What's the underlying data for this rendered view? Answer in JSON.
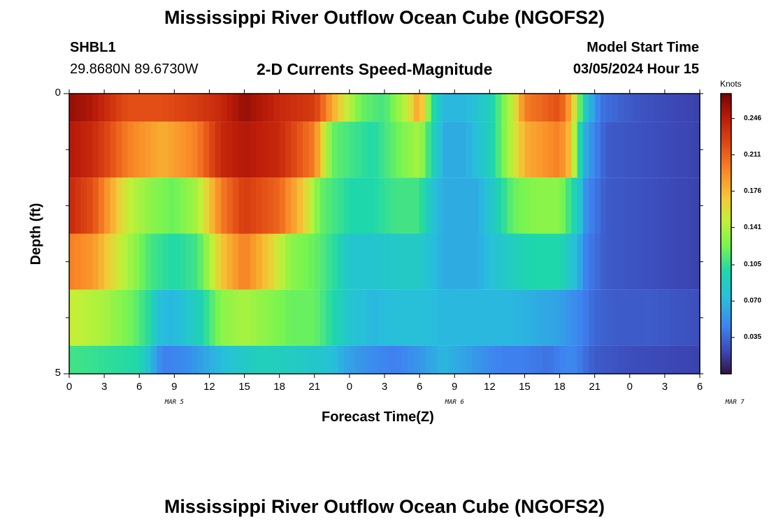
{
  "chart_data": {
    "type": "heatmap",
    "title": "Mississippi River Outflow Ocean Cube (NGOFS2)",
    "subtitle": "2-D Currents Speed-Magnitude",
    "station": "SHBL1",
    "coordinates": "29.8680N  89.6730W",
    "model_start_label": "Model Start Time",
    "model_start_value": "03/05/2024 Hour 15",
    "xlabel": "Forecast Time(Z)",
    "ylabel": "Depth (ft)",
    "colorbar_label": "Knots",
    "x_tick_labels": [
      "0",
      "3",
      "6",
      "9",
      "12",
      "15",
      "18",
      "21",
      "0",
      "3",
      "6",
      "9",
      "12",
      "15",
      "18",
      "21",
      "0",
      "3",
      "6"
    ],
    "x_date_labels": [
      {
        "label": "MAR 5",
        "hour": 9
      },
      {
        "label": "MAR 6",
        "hour": 33
      },
      {
        "label": "MAR 7",
        "hour": 57
      }
    ],
    "xlim": [
      0,
      54
    ],
    "y_tick_labels": [
      "0",
      "5"
    ],
    "ylim": [
      0,
      5
    ],
    "colorbar_ticks": [
      "0.246",
      "0.211",
      "0.176",
      "0.141",
      "0.105",
      "0.070",
      "0.035"
    ],
    "colorbar_range": [
      0.0,
      0.27
    ],
    "colormap": "turbo",
    "rows": [
      {
        "depth_top": 0.0,
        "depth_bottom": 0.5,
        "knots": [
          [
            0,
            0.26
          ],
          [
            2,
            0.25
          ],
          [
            5,
            0.22
          ],
          [
            8,
            0.22
          ],
          [
            11,
            0.23
          ],
          [
            13,
            0.24
          ],
          [
            15,
            0.26
          ],
          [
            18,
            0.24
          ],
          [
            21,
            0.23
          ],
          [
            23,
            0.17
          ],
          [
            25,
            0.12
          ],
          [
            27,
            0.11
          ],
          [
            29,
            0.15
          ],
          [
            30,
            0.19
          ],
          [
            31,
            0.11
          ],
          [
            32,
            0.07
          ],
          [
            34,
            0.07
          ],
          [
            36,
            0.09
          ],
          [
            37,
            0.12
          ],
          [
            38,
            0.15
          ],
          [
            39,
            0.2
          ],
          [
            42,
            0.22
          ],
          [
            43,
            0.18
          ],
          [
            43.7,
            0.12
          ],
          [
            44.3,
            0.08
          ],
          [
            45.5,
            0.04
          ],
          [
            48,
            0.03
          ],
          [
            50,
            0.025
          ],
          [
            53.8,
            0.02
          ],
          [
            54,
            0.0
          ]
        ]
      },
      {
        "depth_top": 0.5,
        "depth_bottom": 1.5,
        "knots": [
          [
            0,
            0.25
          ],
          [
            2,
            0.24
          ],
          [
            5,
            0.2
          ],
          [
            8,
            0.18
          ],
          [
            11,
            0.2
          ],
          [
            13,
            0.24
          ],
          [
            15,
            0.25
          ],
          [
            18,
            0.24
          ],
          [
            21,
            0.2
          ],
          [
            22.5,
            0.12
          ],
          [
            24,
            0.11
          ],
          [
            26,
            0.1
          ],
          [
            28,
            0.12
          ],
          [
            30,
            0.14
          ],
          [
            31,
            0.1
          ],
          [
            32,
            0.065
          ],
          [
            34,
            0.065
          ],
          [
            36,
            0.09
          ],
          [
            37,
            0.12
          ],
          [
            38,
            0.15
          ],
          [
            39,
            0.18
          ],
          [
            42,
            0.2
          ],
          [
            43,
            0.17
          ],
          [
            43.7,
            0.1
          ],
          [
            44.3,
            0.06
          ],
          [
            46,
            0.03
          ],
          [
            50,
            0.025
          ],
          [
            54,
            0.02
          ]
        ]
      },
      {
        "depth_top": 1.5,
        "depth_bottom": 2.5,
        "knots": [
          [
            0,
            0.24
          ],
          [
            2,
            0.22
          ],
          [
            5,
            0.15
          ],
          [
            7,
            0.13
          ],
          [
            9,
            0.12
          ],
          [
            11,
            0.14
          ],
          [
            13,
            0.2
          ],
          [
            15,
            0.23
          ],
          [
            18,
            0.21
          ],
          [
            20,
            0.17
          ],
          [
            21.5,
            0.12
          ],
          [
            24,
            0.1
          ],
          [
            26,
            0.1
          ],
          [
            28,
            0.11
          ],
          [
            30,
            0.11
          ],
          [
            31,
            0.08
          ],
          [
            32,
            0.065
          ],
          [
            35,
            0.065
          ],
          [
            36,
            0.08
          ],
          [
            38,
            0.12
          ],
          [
            40,
            0.13
          ],
          [
            42,
            0.13
          ],
          [
            43.5,
            0.09
          ],
          [
            44.3,
            0.05
          ],
          [
            46,
            0.03
          ],
          [
            50,
            0.025
          ],
          [
            54,
            0.02
          ]
        ]
      },
      {
        "depth_top": 2.5,
        "depth_bottom": 3.5,
        "knots": [
          [
            0,
            0.2
          ],
          [
            2,
            0.19
          ],
          [
            5,
            0.14
          ],
          [
            7,
            0.11
          ],
          [
            9,
            0.1
          ],
          [
            11,
            0.11
          ],
          [
            13,
            0.17
          ],
          [
            15,
            0.2
          ],
          [
            17,
            0.17
          ],
          [
            19,
            0.13
          ],
          [
            21,
            0.12
          ],
          [
            23,
            0.1
          ],
          [
            24,
            0.08
          ],
          [
            26,
            0.08
          ],
          [
            28,
            0.085
          ],
          [
            30,
            0.085
          ],
          [
            32,
            0.065
          ],
          [
            35,
            0.065
          ],
          [
            36,
            0.075
          ],
          [
            38,
            0.09
          ],
          [
            40,
            0.1
          ],
          [
            42,
            0.1
          ],
          [
            43.5,
            0.07
          ],
          [
            44.3,
            0.045
          ],
          [
            46,
            0.03
          ],
          [
            50,
            0.025
          ],
          [
            54,
            0.02
          ]
        ]
      },
      {
        "depth_top": 3.5,
        "depth_bottom": 4.5,
        "knots": [
          [
            0,
            0.15
          ],
          [
            3,
            0.14
          ],
          [
            5.5,
            0.12
          ],
          [
            7,
            0.1
          ],
          [
            7.5,
            0.075
          ],
          [
            9,
            0.07
          ],
          [
            11,
            0.09
          ],
          [
            13,
            0.13
          ],
          [
            15,
            0.14
          ],
          [
            17,
            0.13
          ],
          [
            19,
            0.12
          ],
          [
            21,
            0.12
          ],
          [
            23,
            0.095
          ],
          [
            24,
            0.08
          ],
          [
            26,
            0.07
          ],
          [
            28,
            0.075
          ],
          [
            30,
            0.075
          ],
          [
            32,
            0.07
          ],
          [
            35,
            0.07
          ],
          [
            38,
            0.07
          ],
          [
            40,
            0.065
          ],
          [
            42,
            0.06
          ],
          [
            44,
            0.045
          ],
          [
            45,
            0.035
          ],
          [
            47,
            0.03
          ],
          [
            50,
            0.03
          ],
          [
            54,
            0.025
          ]
        ]
      },
      {
        "depth_top": 4.5,
        "depth_bottom": 5.0,
        "knots": [
          [
            0,
            0.11
          ],
          [
            3,
            0.105
          ],
          [
            6,
            0.1
          ],
          [
            7,
            0.07
          ],
          [
            8,
            0.045
          ],
          [
            10,
            0.05
          ],
          [
            12,
            0.065
          ],
          [
            14,
            0.08
          ],
          [
            16,
            0.09
          ],
          [
            18,
            0.09
          ],
          [
            20,
            0.085
          ],
          [
            22,
            0.08
          ],
          [
            24,
            0.06
          ],
          [
            26,
            0.05
          ],
          [
            28,
            0.045
          ],
          [
            30,
            0.055
          ],
          [
            32,
            0.07
          ],
          [
            33,
            0.065
          ],
          [
            35,
            0.055
          ],
          [
            37,
            0.045
          ],
          [
            39,
            0.045
          ],
          [
            41,
            0.04
          ],
          [
            43,
            0.05
          ],
          [
            44,
            0.04
          ],
          [
            45,
            0.03
          ],
          [
            48,
            0.025
          ],
          [
            54,
            0.02
          ]
        ]
      }
    ]
  }
}
